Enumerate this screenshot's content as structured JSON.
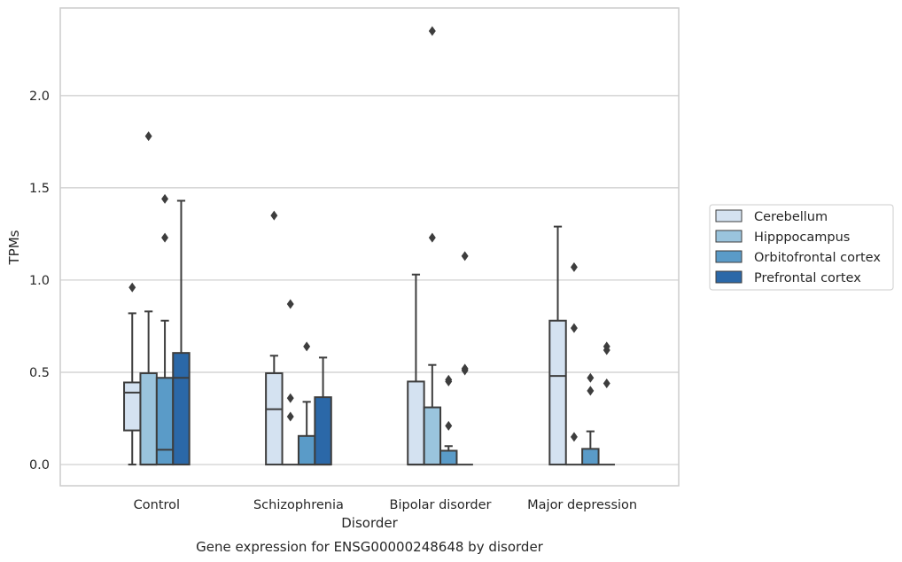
{
  "caption": "Gene expression for ENSG00000248648 by disorder",
  "chart_data": {
    "type": "box",
    "title": "",
    "xlabel": "Disorder",
    "ylabel": "TPMs",
    "ylim": [
      -0.115,
      2.475
    ],
    "yticks": [
      0.0,
      0.5,
      1.0,
      1.5,
      2.0
    ],
    "ytick_labels": [
      "0.0",
      "0.5",
      "1.0",
      "1.5",
      "2.0"
    ],
    "grid": "horizontal",
    "legend_position": "right",
    "categories": [
      "Control",
      "Schizophrenia",
      "Bipolar disorder",
      "Major depression"
    ],
    "series": [
      {
        "name": "Cerebellum",
        "color": "#d4e2f1",
        "boxes": [
          {
            "whislo": 0.0,
            "q1": 0.185,
            "med": 0.39,
            "q3": 0.445,
            "whishi": 0.82,
            "fliers": [
              0.96
            ]
          },
          {
            "whislo": 0.0,
            "q1": 0.0,
            "med": 0.3,
            "q3": 0.495,
            "whishi": 0.59,
            "fliers": [
              1.35
            ]
          },
          {
            "whislo": 0.0,
            "q1": 0.0,
            "med": 0.0,
            "q3": 0.45,
            "whishi": 1.03,
            "fliers": []
          },
          {
            "whislo": 0.0,
            "q1": 0.0,
            "med": 0.48,
            "q3": 0.78,
            "whishi": 1.29,
            "fliers": []
          }
        ]
      },
      {
        "name": "Hipppocampus",
        "color": "#9ac4dd",
        "boxes": [
          {
            "whislo": 0.0,
            "q1": 0.0,
            "med": 0.0,
            "q3": 0.495,
            "whishi": 0.83,
            "fliers": [
              1.78
            ]
          },
          {
            "whislo": 0.0,
            "q1": 0.0,
            "med": 0.0,
            "q3": 0.0,
            "whishi": 0.0,
            "fliers": [
              0.26,
              0.36,
              0.87
            ]
          },
          {
            "whislo": 0.0,
            "q1": 0.0,
            "med": 0.0,
            "q3": 0.31,
            "whishi": 0.54,
            "fliers": [
              1.23,
              2.35
            ]
          },
          {
            "whislo": 0.0,
            "q1": 0.0,
            "med": 0.0,
            "q3": 0.0,
            "whishi": 0.0,
            "fliers": [
              0.15,
              0.74,
              1.07
            ]
          }
        ]
      },
      {
        "name": "Orbitofrontal cortex",
        "color": "#5a9bc8",
        "boxes": [
          {
            "whislo": 0.0,
            "q1": 0.0,
            "med": 0.08,
            "q3": 0.47,
            "whishi": 0.78,
            "fliers": [
              1.23,
              1.44
            ]
          },
          {
            "whislo": 0.0,
            "q1": 0.0,
            "med": 0.0,
            "q3": 0.155,
            "whishi": 0.34,
            "fliers": [
              0.64
            ]
          },
          {
            "whislo": 0.0,
            "q1": 0.0,
            "med": 0.0,
            "q3": 0.075,
            "whishi": 0.1,
            "fliers": [
              0.21,
              0.45,
              0.46
            ]
          },
          {
            "whislo": 0.0,
            "q1": 0.0,
            "med": 0.0,
            "q3": 0.085,
            "whishi": 0.18,
            "fliers": [
              0.4,
              0.47
            ]
          }
        ]
      },
      {
        "name": "Prefrontal cortex",
        "color": "#2b68a8",
        "boxes": [
          {
            "whislo": 0.0,
            "q1": 0.0,
            "med": 0.47,
            "q3": 0.605,
            "whishi": 1.43,
            "fliers": []
          },
          {
            "whislo": 0.0,
            "q1": 0.0,
            "med": 0.0,
            "q3": 0.365,
            "whishi": 0.58,
            "fliers": []
          },
          {
            "whislo": 0.0,
            "q1": 0.0,
            "med": 0.0,
            "q3": 0.0,
            "whishi": 0.0,
            "fliers": [
              0.51,
              0.52,
              1.13
            ]
          },
          {
            "whislo": 0.0,
            "q1": 0.0,
            "med": 0.0,
            "q3": 0.0,
            "whishi": 0.0,
            "fliers": [
              0.44,
              0.62,
              0.64
            ]
          }
        ]
      }
    ]
  }
}
